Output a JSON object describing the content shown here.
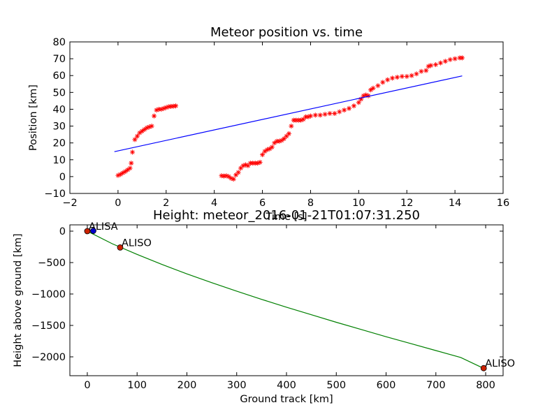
{
  "chart_data": [
    {
      "type": "scatter",
      "title": "Meteor position vs. time",
      "xlabel": "Time [s]",
      "ylabel": "Position [km]",
      "xlim": [
        -2,
        16
      ],
      "ylim": [
        -10,
        80
      ],
      "xticks": [
        -2,
        0,
        2,
        4,
        6,
        8,
        10,
        12,
        14,
        16
      ],
      "yticks": [
        -10,
        0,
        10,
        20,
        30,
        40,
        50,
        60,
        70,
        80
      ],
      "series": [
        {
          "style": "markers",
          "color": "#ff0000",
          "segments": [
            {
              "x": [
                0.0,
                0.1,
                0.2,
                0.3,
                0.4,
                0.5,
                0.55,
                0.6,
                0.7,
                0.8,
                0.9,
                1.0,
                1.1,
                1.2,
                1.3,
                1.4,
                1.5,
                1.6,
                1.7,
                1.8,
                1.9,
                2.0,
                2.1,
                2.2,
                2.3,
                2.4
              ],
              "y": [
                0.7,
                1.3,
                2.2,
                3.0,
                4.0,
                5.0,
                8.0,
                14.5,
                22.0,
                24.0,
                26.0,
                27.0,
                28.0,
                29.0,
                29.5,
                30.0,
                36.0,
                39.5,
                40.0,
                40.0,
                40.5,
                41.0,
                41.5,
                41.7,
                41.8,
                42.0
              ]
            },
            {
              "x": [
                4.3,
                4.4,
                4.5,
                4.6,
                4.7,
                4.8,
                4.9,
                5.0,
                5.1,
                5.2,
                5.3,
                5.4,
                5.5,
                5.6,
                5.7,
                5.8,
                5.9,
                6.0,
                6.1,
                6.2,
                6.3,
                6.4,
                6.5,
                6.6,
                6.7,
                6.8,
                6.9,
                7.0,
                7.1,
                7.2,
                7.3,
                7.4,
                7.5,
                7.6,
                7.7,
                7.8,
                7.9,
                8.0,
                8.2,
                8.4,
                8.6,
                8.8,
                9.0,
                9.2,
                9.4,
                9.6,
                9.8,
                10.0,
                10.1,
                10.2,
                10.3,
                10.4,
                10.5,
                10.6,
                10.8,
                11.0,
                11.2,
                11.4,
                11.6,
                11.8,
                12.0,
                12.2,
                12.4,
                12.6,
                12.8,
                12.9,
                13.0,
                13.2,
                13.4,
                13.6,
                13.8,
                14.0,
                14.2,
                14.3
              ],
              "y": [
                0.5,
                0.3,
                0.5,
                0.0,
                -1.0,
                -1.5,
                1.0,
                2.5,
                5.0,
                6.5,
                7.0,
                6.5,
                8.0,
                8.0,
                8.0,
                8.0,
                8.5,
                13.0,
                15.0,
                16.0,
                16.5,
                17.5,
                20.0,
                21.0,
                21.0,
                21.5,
                22.5,
                24.0,
                25.5,
                30.0,
                33.5,
                33.5,
                33.5,
                33.5,
                34.0,
                35.5,
                35.5,
                36.0,
                36.5,
                36.5,
                37.0,
                37.5,
                37.5,
                38.5,
                39.5,
                40.5,
                42.0,
                44.0,
                46.0,
                48.0,
                48.5,
                48.0,
                51.5,
                52.5,
                54.0,
                56.0,
                57.5,
                58.5,
                59.0,
                59.5,
                59.5,
                60.0,
                61.0,
                62.5,
                63.0,
                65.5,
                66.0,
                66.5,
                67.5,
                68.5,
                69.5,
                70.0,
                70.5,
                70.5
              ]
            }
          ]
        },
        {
          "style": "line",
          "color": "#0000ff",
          "x": [
            -0.15,
            14.3
          ],
          "y": [
            14.8,
            59.8
          ]
        }
      ]
    },
    {
      "type": "line",
      "title": "Height: meteor_2016-01-21T01:07:31.250",
      "xlabel": "Ground track [km]",
      "ylabel": "Height above ground [km]",
      "xlim": [
        -35,
        835
      ],
      "ylim": [
        -2300,
        100
      ],
      "xticks": [
        0,
        100,
        200,
        300,
        400,
        500,
        600,
        700,
        800
      ],
      "yticks": [
        0,
        -500,
        -1000,
        -1500,
        -2000
      ],
      "series": [
        {
          "style": "line",
          "color": "#008000",
          "x": [
            0,
            50,
            100,
            150,
            200,
            250,
            300,
            350,
            400,
            450,
            500,
            550,
            600,
            650,
            700,
            750,
            795
          ],
          "y": [
            0,
            -200,
            -370,
            -530,
            -680,
            -820,
            -955,
            -1085,
            -1210,
            -1330,
            -1450,
            -1565,
            -1680,
            -1790,
            -1900,
            -2010,
            -2180
          ]
        }
      ],
      "points": [
        {
          "label": "ALISA",
          "x": 0,
          "y": 0,
          "color": "#cc2200"
        },
        {
          "label": "",
          "x": 12,
          "y": 5,
          "color": "#0000cc"
        },
        {
          "label": "ALISO",
          "x": 66,
          "y": -260,
          "color": "#cc2200"
        },
        {
          "label": "ALISO",
          "x": 796,
          "y": -2180,
          "color": "#cc2200"
        }
      ]
    }
  ]
}
